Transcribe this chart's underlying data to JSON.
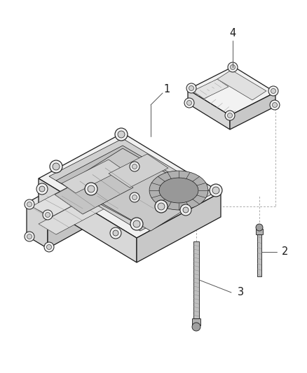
{
  "background_color": "#ffffff",
  "fig_width": 4.38,
  "fig_height": 5.33,
  "dpi": 100,
  "lc": "#1a1a1a",
  "label_fontsize": 10.5,
  "label_color": "#1a1a1a",
  "leader_color": "#555555",
  "face_top": "#f5f5f5",
  "face_left": "#e0e0e0",
  "face_right": "#d0d0d0",
  "face_inner": "#e8e8e8",
  "hatch_color": "#aaaaaa",
  "bolt_white": "#ffffff",
  "bolt_gray": "#bbbbbb"
}
